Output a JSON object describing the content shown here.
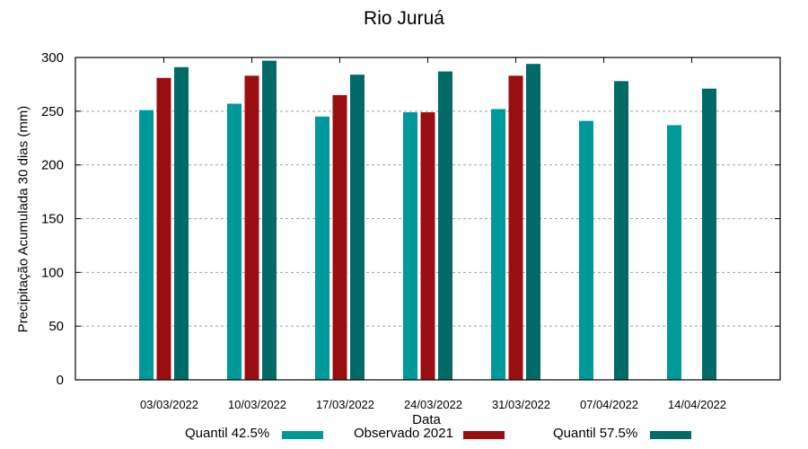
{
  "chart_data": {
    "type": "bar",
    "title": "Rio Juruá",
    "xlabel": "Data",
    "ylabel": "Precipitação Acumulada 30 dias (mm)",
    "ylim": [
      0,
      300
    ],
    "yticks": [
      0,
      50,
      100,
      150,
      200,
      250,
      300
    ],
    "grid": true,
    "legend_position": "bottom",
    "categories": [
      "03/03/2022",
      "10/03/2022",
      "17/03/2022",
      "24/03/2022",
      "31/03/2022",
      "07/04/2022",
      "14/04/2022"
    ],
    "series": [
      {
        "name": "Quantil 42.5%",
        "color": "#009999",
        "values": [
          251,
          257,
          245,
          249,
          252,
          241,
          237
        ]
      },
      {
        "name": "Observado 2021",
        "color": "#990f11",
        "values": [
          281,
          283,
          265,
          249,
          283,
          null,
          null
        ]
      },
      {
        "name": "Quantil 57.5%",
        "color": "#006b66",
        "values": [
          291,
          297,
          284,
          287,
          294,
          278,
          271
        ]
      }
    ]
  },
  "legend": [
    {
      "label": "Quantil 42.5%",
      "color": "#009999"
    },
    {
      "label": "Observado 2021",
      "color": "#990f11"
    },
    {
      "label": "Quantil 57.5%",
      "color": "#006b66"
    }
  ]
}
